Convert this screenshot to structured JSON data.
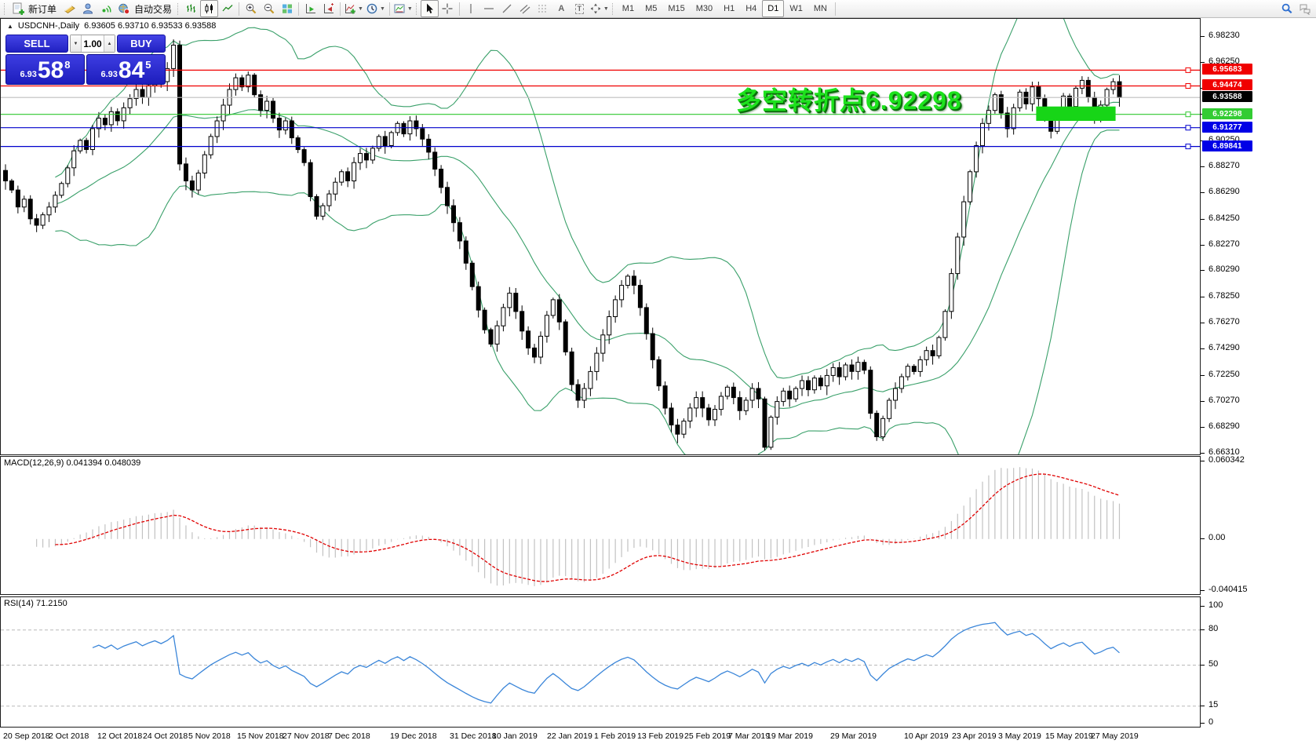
{
  "window": {
    "title": "USDCNH-,Daily",
    "quotes": "6.93605 6.93710 6.93533 6.93588"
  },
  "toolbar": {
    "new_order": "新订单",
    "auto_trading": "自动交易",
    "glyph_a": "A",
    "glyph_t": "T",
    "timeframes": [
      "M1",
      "M5",
      "M15",
      "M30",
      "H1",
      "H4",
      "D1",
      "W1",
      "MN"
    ],
    "active_timeframe": "D1"
  },
  "trade_panel": {
    "sell": "SELL",
    "buy": "BUY",
    "volume": "1.00",
    "sell_small": "6.93",
    "sell_big": "58",
    "sell_sup": "8",
    "buy_small": "6.93",
    "buy_big": "84",
    "buy_sup": "5"
  },
  "chart_data": {
    "type": "candlestick",
    "symbol": "USDCNH-",
    "timeframe": "Daily",
    "price_scale": {
      "top_price": 6.9823,
      "top_y": 23,
      "bottom_price": 6.6631,
      "bottom_y": 554
    },
    "y_ticks": [
      "6.98230",
      "6.96250",
      "6.94270",
      "6.92290",
      "6.90250",
      "6.88270",
      "6.86290",
      "6.84250",
      "6.82270",
      "6.80290",
      "6.78250",
      "6.76270",
      "6.74290",
      "6.72250",
      "6.70270",
      "6.68290",
      "6.66310"
    ],
    "candles": {
      "first_open": 6.88,
      "up_fill": "#ffffff",
      "down_fill": "#000000",
      "outline": "#000000",
      "bollinger_color": "#3aa06a",
      "closes": [
        6.872,
        6.865,
        6.852,
        6.858,
        6.843,
        6.838,
        6.846,
        6.852,
        6.861,
        6.87,
        6.882,
        6.895,
        6.903,
        6.896,
        6.912,
        6.92,
        6.915,
        6.925,
        6.918,
        6.928,
        6.935,
        6.942,
        6.936,
        6.945,
        6.952,
        6.948,
        6.958,
        6.976,
        6.885,
        6.872,
        6.865,
        6.878,
        6.892,
        6.906,
        6.918,
        6.93,
        6.942,
        6.951,
        6.944,
        6.953,
        6.938,
        6.926,
        6.933,
        6.92,
        6.911,
        6.918,
        6.905,
        6.896,
        6.886,
        6.86,
        6.845,
        6.853,
        6.862,
        6.871,
        6.879,
        6.872,
        6.886,
        6.893,
        6.888,
        6.897,
        6.906,
        6.899,
        6.909,
        6.916,
        6.908,
        6.918,
        6.912,
        6.904,
        6.894,
        6.881,
        6.867,
        6.853,
        6.84,
        6.826,
        6.809,
        6.791,
        6.773,
        6.758,
        6.747,
        6.761,
        6.775,
        6.786,
        6.772,
        6.757,
        6.744,
        6.737,
        6.753,
        6.769,
        6.781,
        6.764,
        6.741,
        6.716,
        6.704,
        6.713,
        6.726,
        6.74,
        6.754,
        6.768,
        6.781,
        6.792,
        6.799,
        6.792,
        6.775,
        6.755,
        6.735,
        6.715,
        6.698,
        6.685,
        6.678,
        6.688,
        6.698,
        6.706,
        6.698,
        6.689,
        6.697,
        6.707,
        6.714,
        6.706,
        6.696,
        6.704,
        6.713,
        6.705,
        6.668,
        6.691,
        6.703,
        6.711,
        6.705,
        6.713,
        6.719,
        6.712,
        6.721,
        6.715,
        6.723,
        6.729,
        6.722,
        6.731,
        6.726,
        6.733,
        6.727,
        6.694,
        6.676,
        6.69,
        6.704,
        6.713,
        6.722,
        6.73,
        6.726,
        6.735,
        6.742,
        6.738,
        6.752,
        6.772,
        6.801,
        6.829,
        6.856,
        6.879,
        6.899,
        6.916,
        6.926,
        6.938,
        6.924,
        6.912,
        6.928,
        6.94,
        6.931,
        6.944,
        6.935,
        6.922,
        6.91,
        6.925,
        6.937,
        6.929,
        6.943,
        6.949,
        6.936,
        6.922,
        6.93,
        6.942,
        6.948,
        6.9359
      ]
    },
    "h_lines": [
      {
        "label": "6.95683",
        "value": 6.95683,
        "line": "#f00000",
        "badge": "#f00000",
        "handle": true
      },
      {
        "label": "6.94474",
        "value": 6.94474,
        "line": "#f00000",
        "badge": "#f00000",
        "handle": true
      },
      {
        "label": "6.93588",
        "value": 6.93588,
        "line": "#bfbfbf",
        "badge": "#000000",
        "handle": false
      },
      {
        "label": "6.92298",
        "value": 6.92298,
        "line": "#2fc82f",
        "badge": "#33cc33",
        "handle": true
      },
      {
        "label": "6.91277",
        "value": 6.91277,
        "line": "#0000cc",
        "badge": "#0000e6",
        "handle": true
      },
      {
        "label": "6.89841",
        "value": 6.89841,
        "line": "#0000cc",
        "badge": "#0000e6",
        "handle": true
      }
    ],
    "highlight_box": {
      "from_index": 166,
      "to_index": 178,
      "price_top": 6.929,
      "price_bottom": 6.918,
      "color": "#17d517"
    },
    "annotation": {
      "text": "多空转折点6.92298",
      "color": "#1de21d"
    },
    "macd": {
      "label": "MACD(12,26,9)",
      "values_text": "0.041394 0.048039",
      "top": 0.060342,
      "bottom": -0.040415,
      "axis": [
        {
          "t": "0.060342",
          "v": 0.060342
        },
        {
          "t": "0.00",
          "v": 0
        },
        {
          "t": "-0.040415",
          "v": -0.040415
        }
      ],
      "hist_color": "#c2c2c2",
      "signal_color": "#e00000"
    },
    "rsi": {
      "label": "RSI(14)",
      "value_text": "71.2150",
      "axis": [
        {
          "t": "100",
          "v": 100
        },
        {
          "t": "80",
          "v": 80
        },
        {
          "t": "50",
          "v": 50
        },
        {
          "t": "15",
          "v": 15
        },
        {
          "t": "0",
          "v": 0
        }
      ],
      "levels": [
        80,
        50,
        15
      ],
      "color": "#3b86d9",
      "level_color": "#b9b9b9"
    },
    "x_axis": {
      "labels": [
        "20 Sep 2018",
        "2 Oct 2018",
        "12 Oct 2018",
        "24 Oct 2018",
        "5 Nov 2018",
        "15 Nov 2018",
        "27 Nov 2018",
        "7 Dec 2018",
        "19 Dec 2018",
        "31 Dec 2018",
        "10 Jan 2019",
        "22 Jan 2019",
        "1 Feb 2019",
        "13 Feb 2019",
        "25 Feb 2019",
        "7 Mar 2019",
        "19 Mar 2019",
        "29 Mar 2019",
        "10 Apr 2019",
        "23 Apr 2019",
        "3 May 2019",
        "15 May 2019",
        "27 May 2019"
      ],
      "lefts": [
        4,
        62,
        124,
        182,
        240,
        302,
        360,
        418,
        497,
        573,
        627,
        697,
        757,
        812,
        872,
        928,
        977,
        1058,
        1152,
        1213,
        1272,
        1332,
        1390
      ]
    }
  }
}
